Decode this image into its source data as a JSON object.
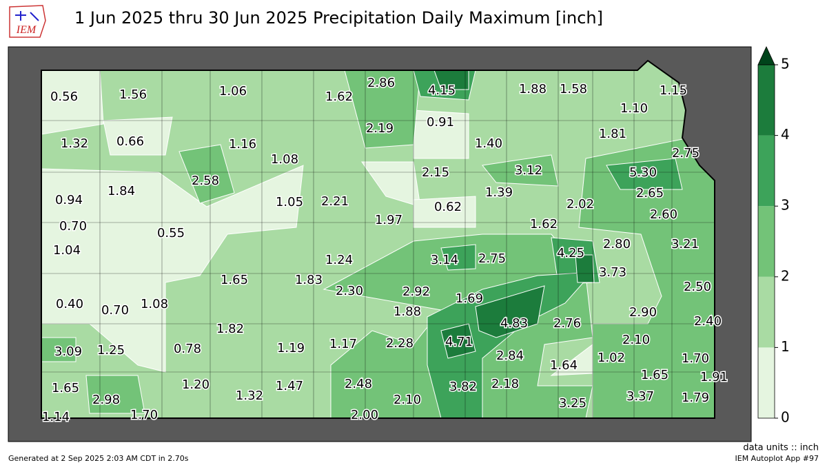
{
  "header": {
    "logo": "IEM",
    "title": "1 Jun 2025 thru 30 Jun 2025 Precipitation Daily Maximum [inch]"
  },
  "map": {
    "station_labels": [
      "0.56",
      "1.56",
      "1.06",
      "1.62",
      "2.86",
      "4.15",
      "1.88",
      "1.58",
      "1.15",
      "1.10",
      "2.19",
      "0.91",
      "1.32",
      "0.66",
      "1.16",
      "1.40",
      "1.81",
      "2.75",
      "1.08",
      "3.12",
      "5.30",
      "2.15",
      "2.58",
      "1.84",
      "1.39",
      "2.65",
      "0.94",
      "1.05",
      "2.21",
      "2.02",
      "0.62",
      "2.60",
      "1.97",
      "1.62",
      "0.70",
      "0.55",
      "2.80",
      "3.21",
      "1.04",
      "4.25",
      "3.14",
      "2.75",
      "1.24",
      "3.73",
      "1.65",
      "1.83",
      "2.50",
      "2.30",
      "2.92",
      "1.69",
      "0.40",
      "1.08",
      "0.70",
      "1.88",
      "2.90",
      "4.83",
      "2.76",
      "2.40",
      "1.82",
      "4.71",
      "2.10",
      "2.28",
      "1.17",
      "1.19",
      "0.78",
      "3.09",
      "1.25",
      "2.84",
      "1.02",
      "1.70",
      "1.64",
      "1.65",
      "1.91",
      "2.48",
      "3.82",
      "2.18",
      "1.20",
      "1.47",
      "1.65",
      "1.32",
      "2.98",
      "2.10",
      "3.37",
      "1.79",
      "3.25",
      "2.00",
      "1.70",
      "1.14"
    ]
  },
  "colorbar": {
    "ticks": [
      0,
      1,
      2,
      3,
      4,
      5
    ],
    "colors": [
      "#e5f5e0",
      "#a9dba3",
      "#73c378",
      "#3da35a",
      "#1c7c3c"
    ],
    "extend_color": "#00441b"
  },
  "footer": {
    "units": "data units :: inch",
    "generated": "Generated at 2 Sep 2025 2:03 AM CDT in 2.70s",
    "app": "IEM Autoplot App #97"
  }
}
